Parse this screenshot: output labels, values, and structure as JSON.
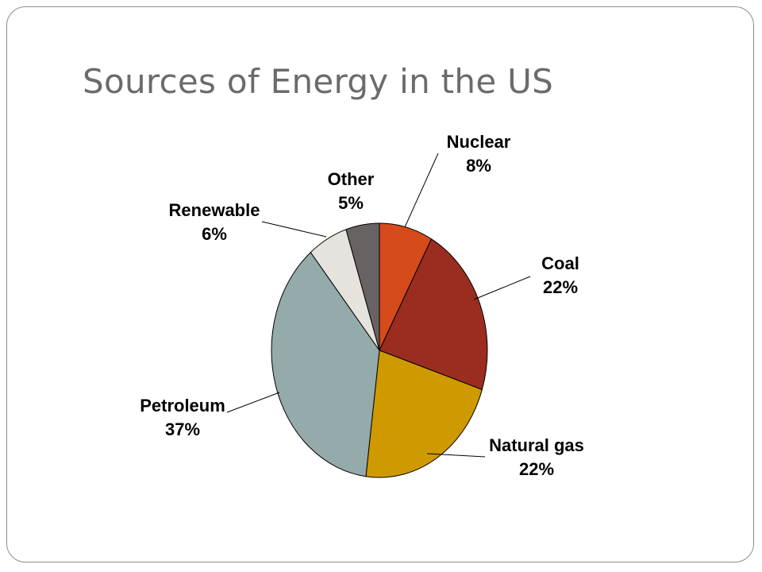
{
  "slide": {
    "title": "Sources of Energy in the US"
  },
  "chart_data": {
    "type": "pie",
    "title": "",
    "unit": "%",
    "slices": [
      {
        "key": "nuclear",
        "label": "Nuclear",
        "value": 8,
        "value_label": "8%",
        "color": "#D54B1B"
      },
      {
        "key": "coal",
        "label": "Coal",
        "value": 22,
        "value_label": "22%",
        "color": "#9A2D20"
      },
      {
        "key": "natural_gas",
        "label": "Natural gas",
        "value": 22,
        "value_label": "22%",
        "color": "#CF9A00"
      },
      {
        "key": "petroleum",
        "label": "Petroleum",
        "value": 37,
        "value_label": "37%",
        "color": "#95AAAA"
      },
      {
        "key": "renewable",
        "label": "Renewable",
        "value": 6,
        "value_label": "6%",
        "color": "#E6E3DE"
      },
      {
        "key": "other",
        "label": "Other",
        "value": 5,
        "value_label": "5%",
        "color": "#696262"
      }
    ]
  }
}
